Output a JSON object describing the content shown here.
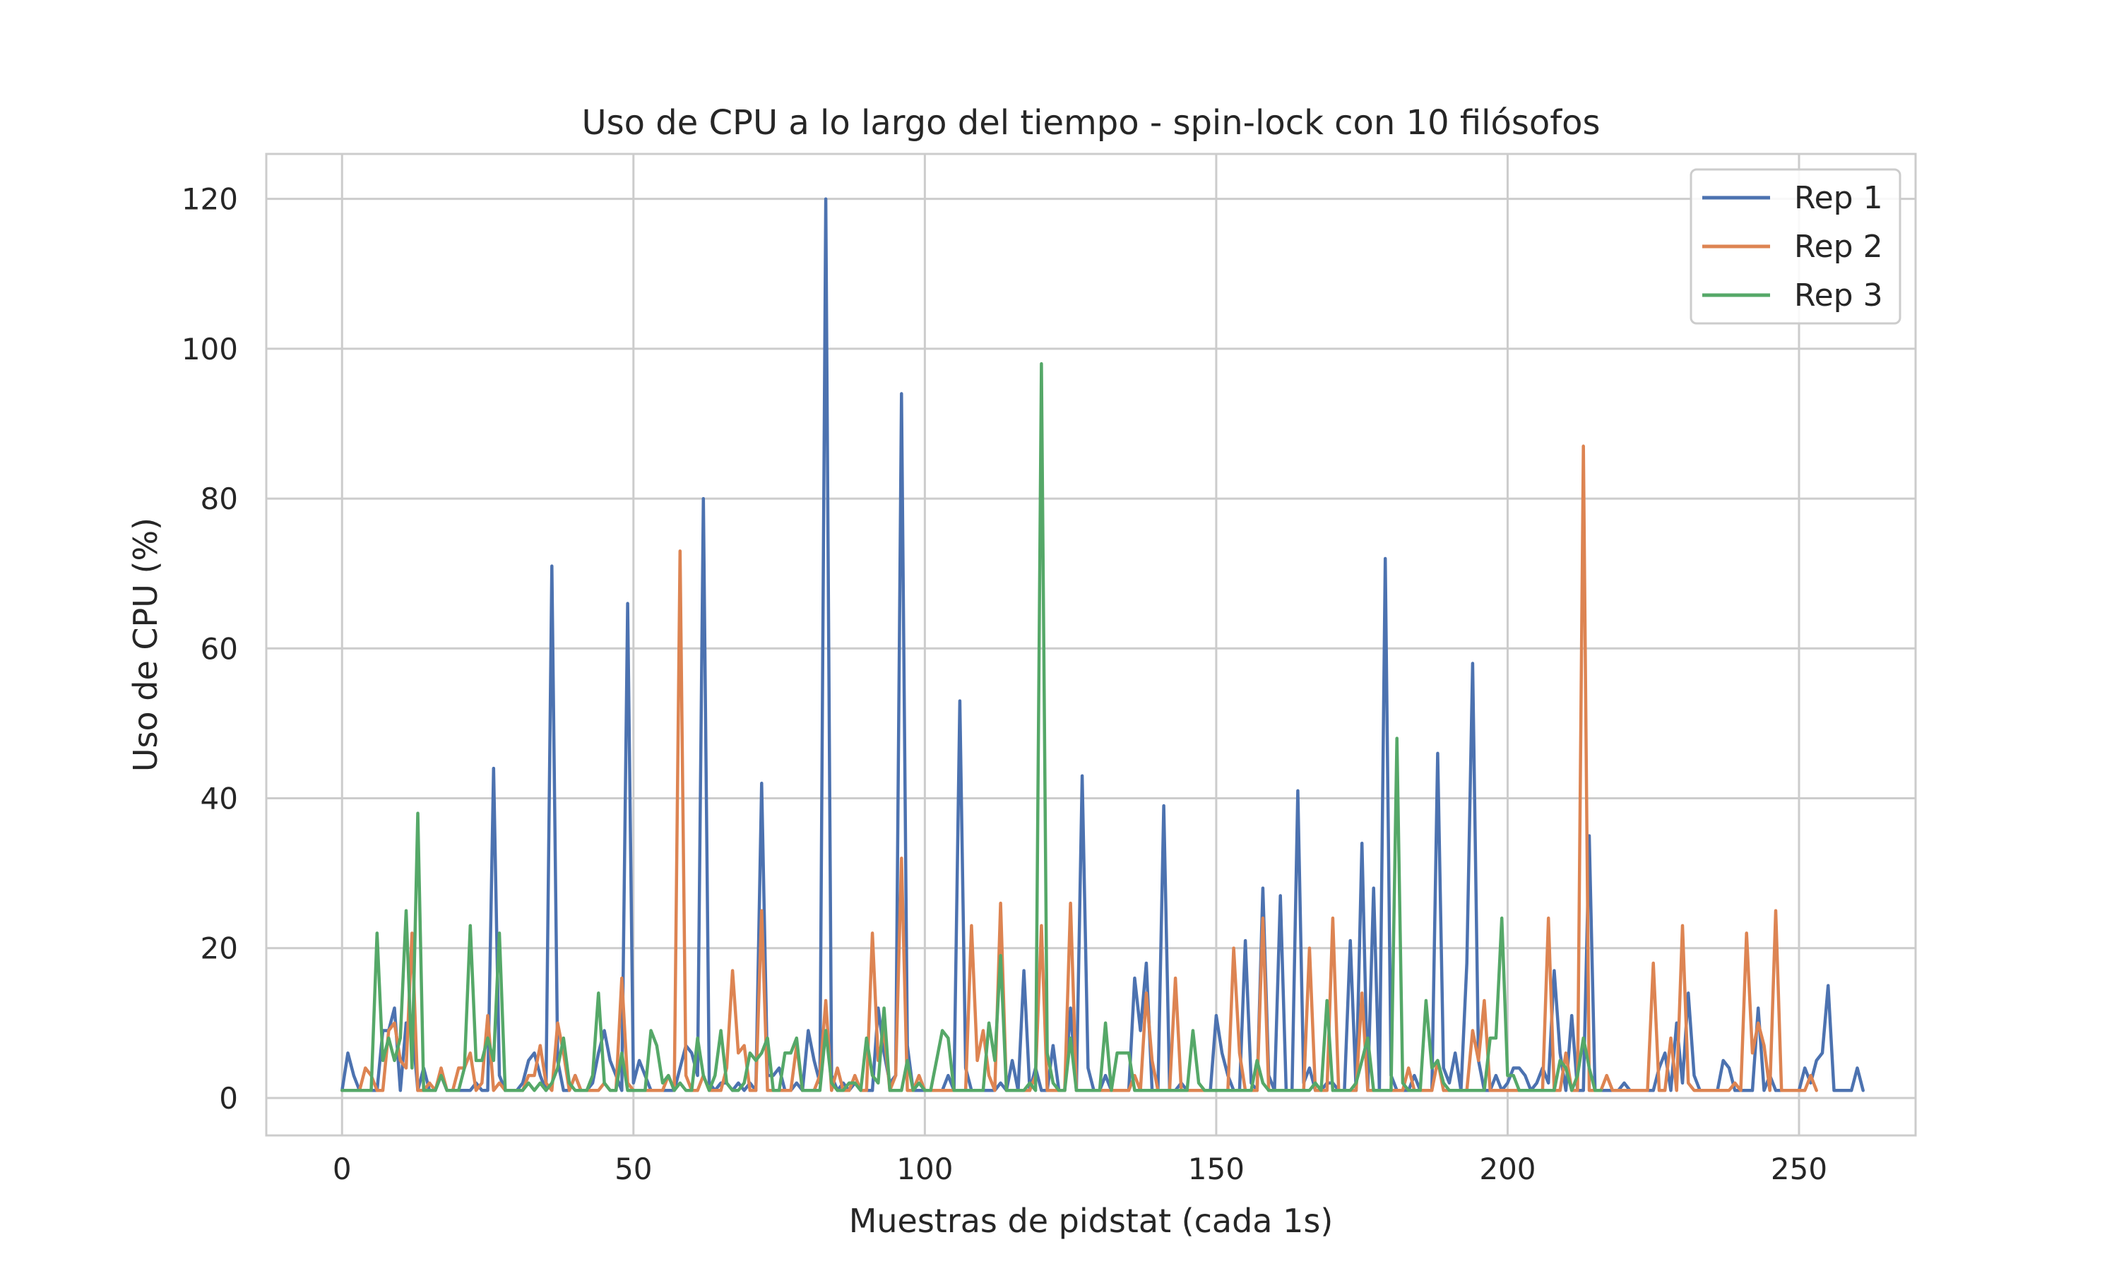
{
  "chart_data": {
    "type": "line",
    "title": "Uso de CPU a lo largo del tiempo - spin-lock con 10 filósofos",
    "xlabel": "Muestras de pidstat (cada 1s)",
    "ylabel": "Uso de CPU (%)",
    "xlim": [
      -13,
      270
    ],
    "ylim": [
      -5,
      126
    ],
    "xticks": [
      0,
      50,
      100,
      150,
      200,
      250
    ],
    "yticks": [
      0,
      20,
      40,
      60,
      80,
      100,
      120
    ],
    "grid": true,
    "legend_position": "top-right",
    "series": [
      {
        "name": "Rep 1",
        "color": "#4c72b0",
        "values": [
          1,
          6,
          3,
          1,
          1,
          1,
          1,
          9,
          9,
          12,
          1,
          10,
          10,
          1,
          4,
          1,
          1,
          3,
          1,
          1,
          1,
          1,
          1,
          2,
          1,
          1,
          44,
          3,
          1,
          1,
          1,
          2,
          5,
          6,
          3,
          1,
          71,
          5,
          1,
          1,
          3,
          1,
          1,
          2,
          6,
          9,
          5,
          3,
          1,
          66,
          2,
          5,
          3,
          1,
          1,
          1,
          1,
          1,
          4,
          7,
          6,
          3,
          80,
          2,
          1,
          2,
          2,
          1,
          2,
          1,
          2,
          1,
          42,
          3,
          3,
          4,
          1,
          1,
          2,
          1,
          9,
          5,
          2,
          120,
          3,
          1,
          2,
          1,
          2,
          1,
          1,
          1,
          12,
          6,
          2,
          3,
          94,
          7,
          1,
          1,
          1,
          1,
          1,
          1,
          3,
          1,
          53,
          4,
          1,
          1,
          1,
          1,
          1,
          2,
          1,
          5,
          1,
          17,
          1,
          4,
          1,
          1,
          7,
          1,
          1,
          12,
          1,
          43,
          4,
          1,
          1,
          3,
          1,
          1,
          1,
          1,
          16,
          9,
          18,
          1,
          1,
          39,
          1,
          1,
          2,
          1,
          1,
          1,
          1,
          1,
          11,
          6,
          3,
          1,
          1,
          21,
          2,
          1,
          28,
          3,
          1,
          27,
          1,
          1,
          41,
          2,
          4,
          1,
          1,
          2,
          2,
          1,
          1,
          21,
          1,
          34,
          1,
          28,
          1,
          72,
          3,
          1,
          1,
          1,
          3,
          1,
          1,
          1,
          46,
          4,
          2,
          6,
          1,
          18,
          58,
          5,
          1,
          1,
          3,
          1,
          2,
          4,
          4,
          3,
          1,
          2,
          4,
          2,
          17,
          6,
          1,
          11,
          1,
          1,
          35,
          1,
          1,
          1,
          1,
          1,
          2,
          1,
          1,
          1,
          1,
          1,
          4,
          6,
          1,
          10,
          2,
          14,
          3,
          1,
          1,
          1,
          1,
          5,
          4,
          1,
          1,
          1,
          1,
          12,
          1,
          3,
          1,
          1,
          1,
          1,
          1,
          4,
          2,
          5,
          6,
          15,
          1,
          1,
          1,
          1,
          4,
          1
        ]
      },
      {
        "name": "Rep 2",
        "color": "#dd8452",
        "values": [
          1,
          1,
          1,
          1,
          4,
          3,
          1,
          1,
          9,
          10,
          5,
          4,
          22,
          1,
          1,
          2,
          1,
          4,
          1,
          1,
          4,
          4,
          6,
          1,
          2,
          11,
          1,
          2,
          1,
          1,
          1,
          1,
          3,
          3,
          7,
          2,
          1,
          10,
          6,
          1,
          3,
          1,
          1,
          1,
          1,
          2,
          1,
          1,
          16,
          2,
          1,
          1,
          1,
          1,
          1,
          1,
          3,
          1,
          73,
          3,
          1,
          1,
          3,
          1,
          1,
          1,
          4,
          17,
          6,
          7,
          1,
          1,
          25,
          1,
          1,
          1,
          1,
          1,
          7,
          1,
          1,
          1,
          3,
          13,
          1,
          4,
          1,
          1,
          3,
          1,
          1,
          22,
          5,
          9,
          1,
          3,
          32,
          1,
          1,
          3,
          1,
          1,
          1,
          1,
          1,
          1,
          1,
          1,
          23,
          5,
          9,
          3,
          1,
          26,
          1,
          1,
          1,
          1,
          1,
          3,
          23,
          1,
          1,
          1,
          1,
          26,
          1,
          1,
          1,
          1,
          1,
          1,
          1,
          1,
          1,
          1,
          3,
          1,
          14,
          5,
          1,
          1,
          1,
          16,
          1,
          1,
          1,
          1,
          1,
          1,
          1,
          1,
          1,
          20,
          6,
          1,
          1,
          1,
          24,
          1,
          1,
          1,
          1,
          1,
          1,
          1,
          20,
          1,
          1,
          1,
          24,
          1,
          1,
          1,
          1,
          14,
          1,
          1,
          1,
          1,
          1,
          1,
          1,
          4,
          1,
          1,
          1,
          1,
          5,
          1,
          1,
          1,
          1,
          1,
          9,
          5,
          13,
          1,
          1,
          1,
          1,
          1,
          1,
          1,
          1,
          1,
          1,
          24,
          1,
          1,
          6,
          1,
          1,
          87,
          1,
          1,
          1,
          3,
          1,
          1,
          1,
          1,
          1,
          1,
          1,
          18,
          1,
          1,
          8,
          1,
          23,
          2,
          1,
          1,
          1,
          1,
          1,
          1,
          1,
          2,
          1,
          22,
          6,
          10,
          7,
          1,
          25,
          1,
          1,
          1,
          1,
          1,
          3,
          1
        ]
      },
      {
        "name": "Rep 3",
        "color": "#55a868",
        "values": [
          1,
          1,
          1,
          1,
          1,
          1,
          22,
          5,
          8,
          5,
          8,
          25,
          4,
          38,
          1,
          1,
          1,
          3,
          1,
          1,
          1,
          4,
          23,
          5,
          5,
          8,
          5,
          22,
          1,
          1,
          1,
          1,
          2,
          1,
          2,
          1,
          2,
          4,
          8,
          2,
          1,
          1,
          1,
          3,
          14,
          2,
          1,
          1,
          6,
          1,
          1,
          1,
          1,
          9,
          7,
          2,
          3,
          1,
          2,
          1,
          1,
          8,
          3,
          1,
          3,
          9,
          2,
          1,
          1,
          2,
          6,
          5,
          6,
          8,
          1,
          1,
          6,
          6,
          8,
          1,
          1,
          1,
          1,
          9,
          2,
          1,
          1,
          2,
          2,
          1,
          8,
          3,
          2,
          12,
          1,
          1,
          1,
          5,
          1,
          2,
          1,
          1,
          5,
          9,
          8,
          1,
          1,
          1,
          1,
          1,
          1,
          10,
          5,
          19,
          1,
          1,
          1,
          1,
          2,
          1,
          98,
          6,
          2,
          1,
          1,
          8,
          1,
          1,
          1,
          1,
          1,
          10,
          1,
          6,
          6,
          6,
          1,
          1,
          1,
          1,
          1,
          1,
          1,
          1,
          1,
          1,
          9,
          2,
          1,
          1,
          1,
          1,
          1,
          1,
          1,
          1,
          1,
          5,
          2,
          1,
          1,
          1,
          1,
          1,
          1,
          1,
          1,
          2,
          1,
          13,
          1,
          1,
          1,
          1,
          2,
          5,
          8,
          1,
          1,
          1,
          1,
          48,
          2,
          1,
          1,
          1,
          13,
          4,
          5,
          2,
          1,
          1,
          1,
          1,
          1,
          1,
          1,
          8,
          8,
          24,
          3,
          3,
          1,
          1,
          1,
          1,
          1,
          1,
          1,
          5,
          4,
          1,
          3,
          8,
          4,
          1,
          1
        ]
      }
    ]
  }
}
